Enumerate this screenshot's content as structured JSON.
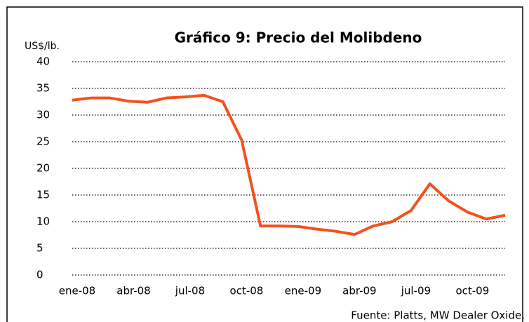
{
  "chart_data": {
    "type": "line",
    "title": "Gráfico 9: Precio del Molibdeno",
    "y_label": "US$/lb.",
    "source": "Fuente: Platts, MW Dealer Oxide.",
    "categories": [
      "ene-08",
      null,
      null,
      "abr-08",
      null,
      null,
      "jul-08",
      null,
      null,
      "oct-08",
      null,
      null,
      "ene-09",
      null,
      null,
      "abr-09",
      null,
      null,
      "jul-09",
      null,
      null,
      "oct-09",
      null,
      null
    ],
    "series": [
      {
        "name": "Molibdeno",
        "color": "#f4511e",
        "values": [
          32.8,
          33.2,
          33.2,
          32.6,
          32.4,
          33.2,
          33.4,
          33.7,
          32.5,
          25.3,
          9.2,
          9.2,
          9.1,
          8.6,
          8.2,
          7.6,
          9.2,
          10.0,
          12.1,
          17.1,
          13.9,
          11.8,
          10.5,
          11.2
        ]
      }
    ],
    "ylim": [
      0,
      40
    ],
    "yticks": [
      0,
      5,
      10,
      15,
      20,
      25,
      30,
      35,
      40
    ],
    "grid": true
  }
}
